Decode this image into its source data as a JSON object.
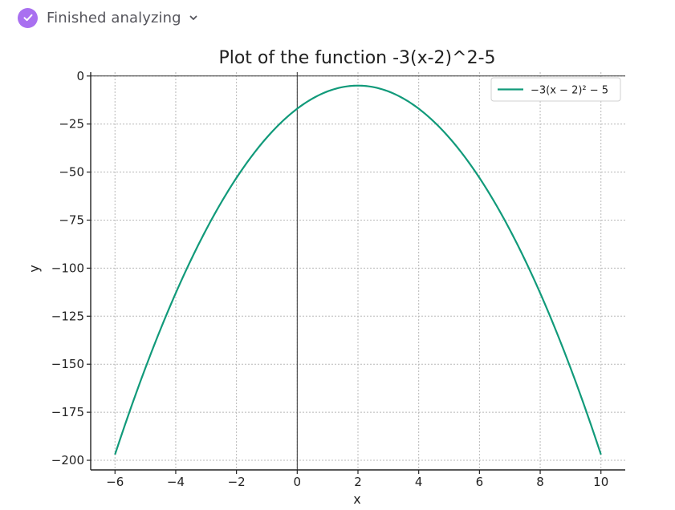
{
  "status": {
    "text": "Finished analyzing",
    "icon": "check-circle-icon",
    "badge_color": "#a970f0"
  },
  "chart_data": {
    "type": "line",
    "title": "Plot of the function -3(x-2)^2-5",
    "xlabel": "x",
    "ylabel": "y",
    "xlim": [
      -6.8,
      10.8
    ],
    "ylim": [
      -205,
      2
    ],
    "xticks": [
      -6,
      -4,
      -2,
      0,
      2,
      4,
      6,
      8,
      10
    ],
    "xtick_labels": [
      "−6",
      "−4",
      "−2",
      "0",
      "2",
      "4",
      "6",
      "8",
      "10"
    ],
    "yticks": [
      0,
      -25,
      -50,
      -75,
      -100,
      -125,
      -150,
      -175,
      -200
    ],
    "ytick_labels": [
      "0",
      "−25",
      "−50",
      "−75",
      "−100",
      "−125",
      "−150",
      "−175",
      "−200"
    ],
    "grid": true,
    "legend_position": "top-right",
    "series": [
      {
        "name": "−3(x − 2)² − 5",
        "color": "#119a7a",
        "x": [
          -6,
          -5,
          -4,
          -3,
          -2,
          -1,
          0,
          1,
          2,
          3,
          4,
          5,
          6,
          7,
          8,
          9,
          10
        ],
        "y": [
          -197,
          -152,
          -113,
          -80,
          -53,
          -32,
          -17,
          -8,
          -5,
          -8,
          -17,
          -32,
          -53,
          -80,
          -113,
          -152,
          -197
        ]
      }
    ]
  }
}
